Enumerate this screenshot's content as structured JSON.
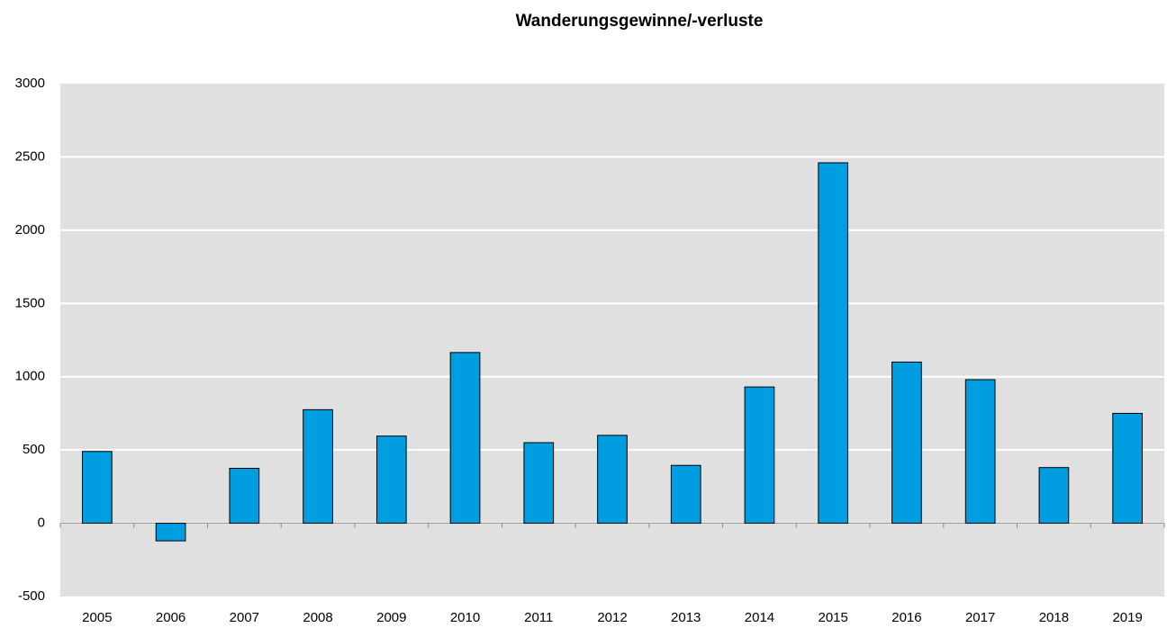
{
  "chart_data": {
    "type": "bar",
    "title": "Wanderungsgewinne/-verluste",
    "categories": [
      "2005",
      "2006",
      "2007",
      "2008",
      "2009",
      "2010",
      "2011",
      "2012",
      "2013",
      "2014",
      "2015",
      "2016",
      "2017",
      "2018",
      "2019"
    ],
    "values": [
      490,
      -120,
      375,
      775,
      595,
      1165,
      550,
      600,
      395,
      930,
      2460,
      1100,
      980,
      380,
      750
    ],
    "color": "#009ee0",
    "ylim": [
      -500,
      3000
    ],
    "yticks": [
      -500,
      0,
      500,
      1000,
      1500,
      2000,
      2500,
      3000
    ],
    "grid": true
  }
}
